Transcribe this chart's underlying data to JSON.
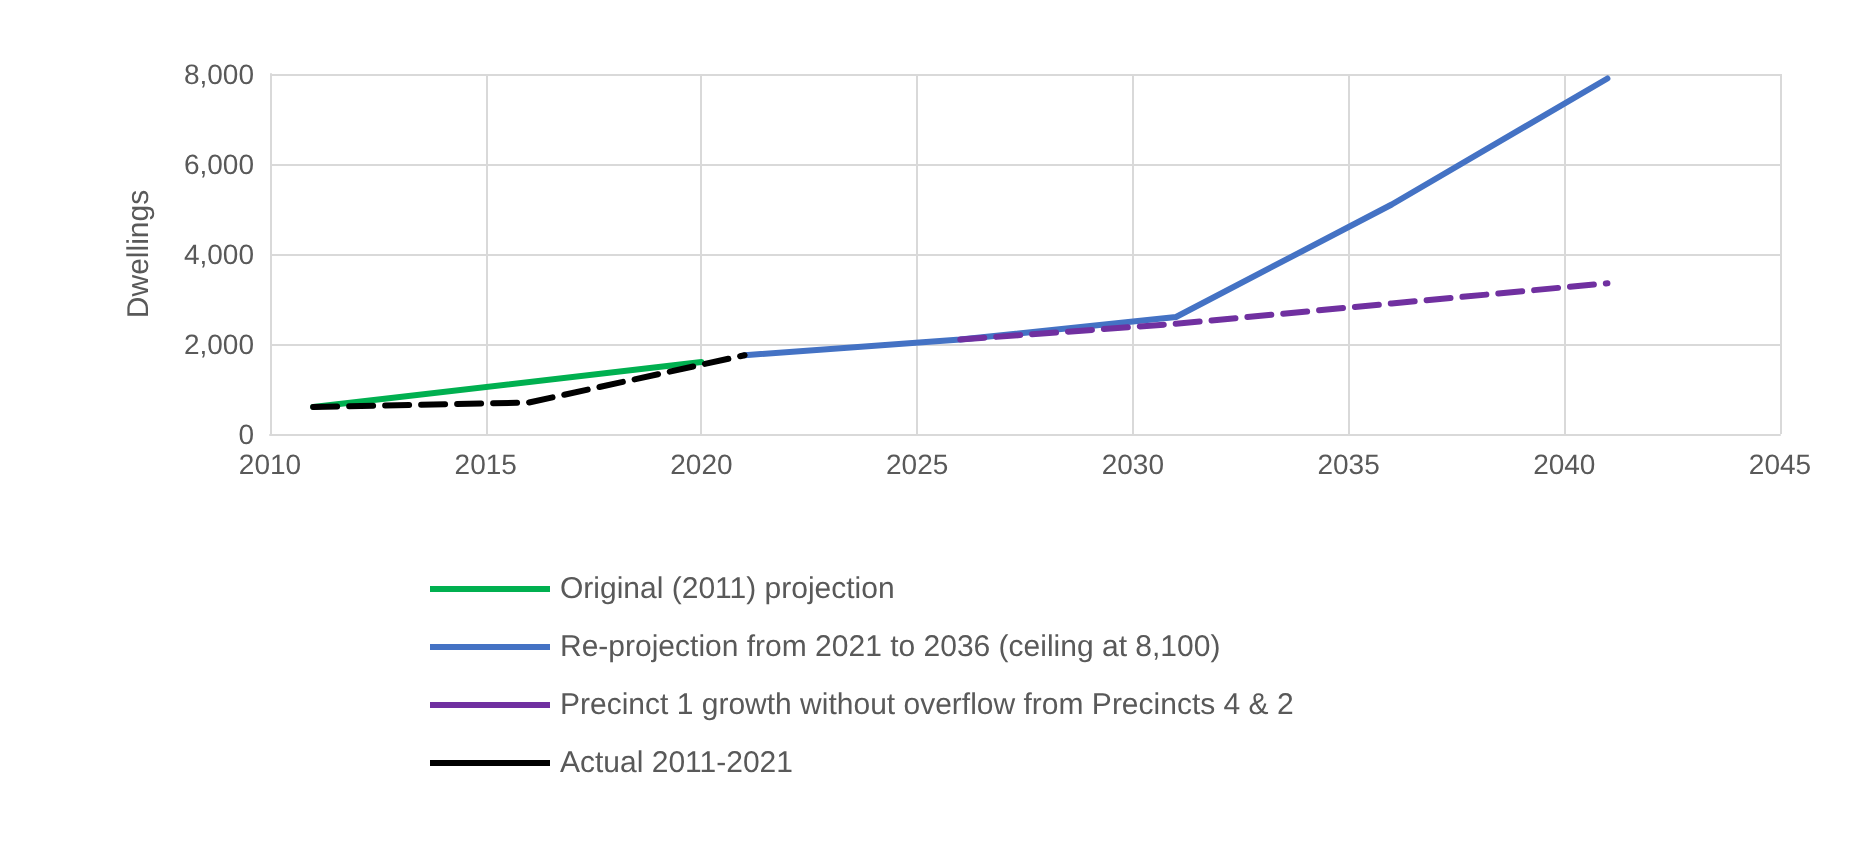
{
  "chart_data": {
    "type": "line",
    "ylabel": "Dwellings",
    "xlim": [
      2010,
      2045
    ],
    "xticks": [
      2010,
      2015,
      2020,
      2025,
      2030,
      2035,
      2040,
      2045
    ],
    "ylim": [
      0,
      8000
    ],
    "yticks": [
      0,
      {
        "value": 2000,
        "label": "2,000"
      },
      {
        "value": 4000,
        "label": "4,000"
      },
      {
        "value": 6000,
        "label": "6,000"
      },
      {
        "value": 8000,
        "label": "8,000"
      }
    ],
    "grid": true,
    "legend": "bottom",
    "marker": "none",
    "series": [
      {
        "name": "Original (2011) projection",
        "color": "#00b050",
        "x": [
          2011,
          2020
        ],
        "values": [
          600,
          1600
        ]
      },
      {
        "name": "Re-projection from 2021 to 2036 (ceiling at 8,100)",
        "color": "#4472c4",
        "x": [
          2021,
          2026,
          2031,
          2036,
          2041
        ],
        "values": [
          1750,
          2100,
          2600,
          5100,
          7900
        ]
      },
      {
        "name": "Precinct 1 growth without overflow from Precincts 4 & 2",
        "color": "#7030a0",
        "line_style": "dashed",
        "x": [
          2026,
          2031,
          2036,
          2041
        ],
        "values": [
          2100,
          2450,
          2900,
          3350
        ]
      },
      {
        "name": "Actual 2011-2021",
        "color": "#000000",
        "line_style": "dashed",
        "x": [
          2011,
          2016,
          2021
        ],
        "values": [
          600,
          700,
          1750
        ]
      }
    ]
  }
}
